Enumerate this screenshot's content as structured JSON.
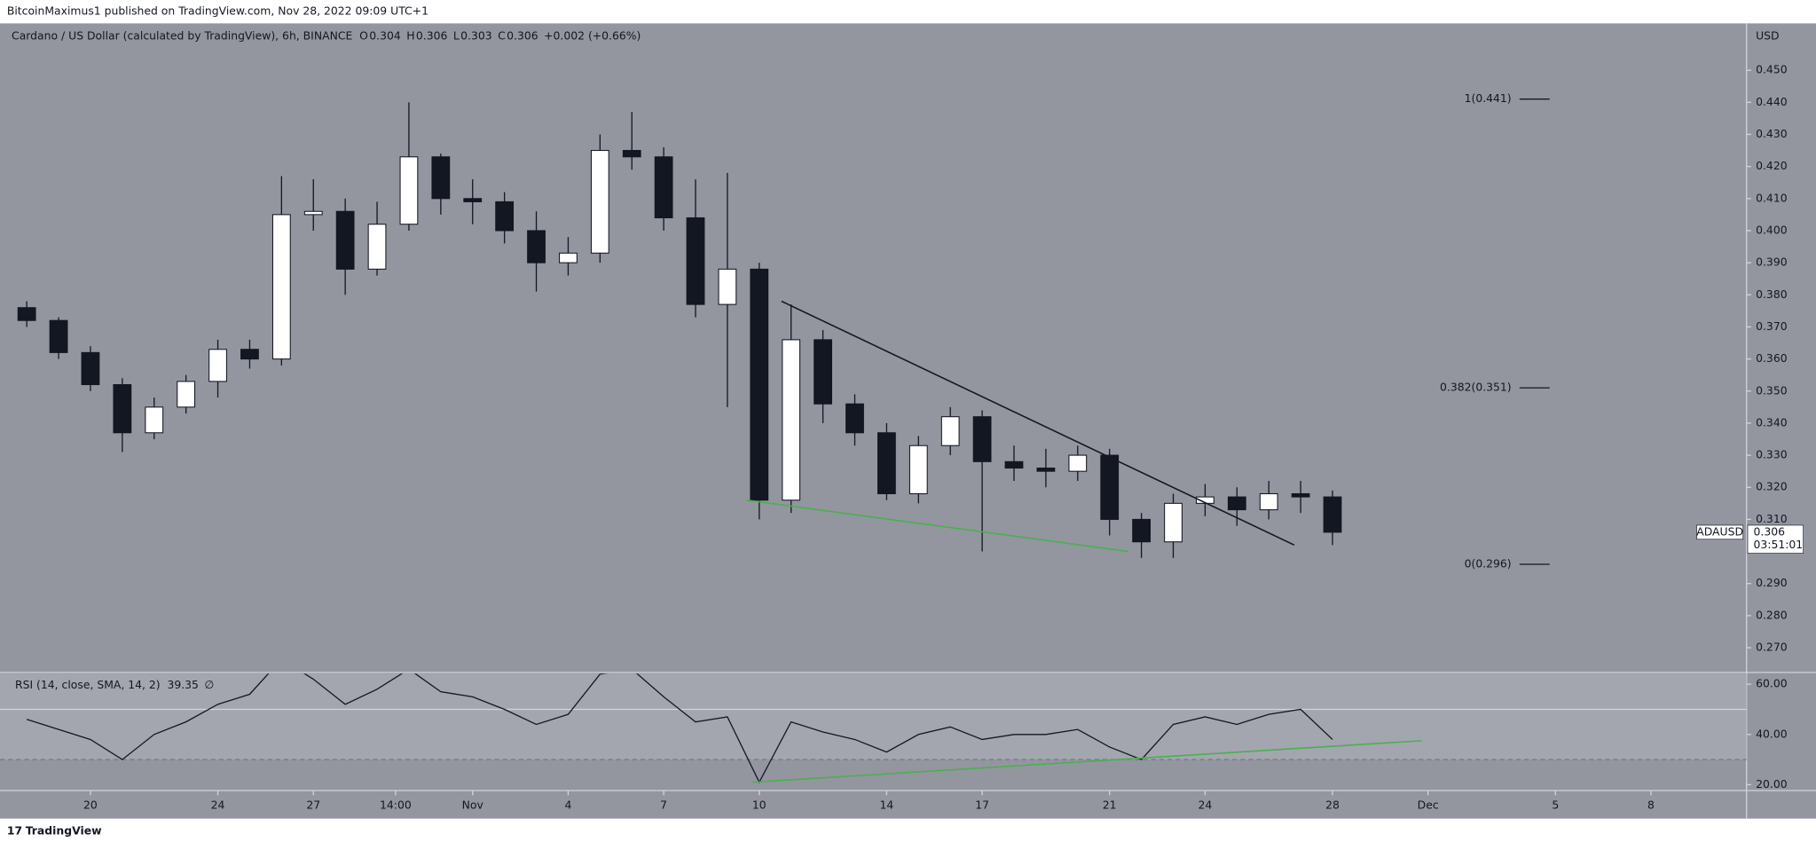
{
  "chart_data": {
    "type": "candlestick",
    "header": "BitcoinMaximus1 published on TradingView.com, Nov 28, 2022 09:09 UTC+1",
    "legend_title": "Cardano / US Dollar (calculated by TradingView), 6h, BINANCE",
    "ohlc_legend": [
      {
        "label": "O",
        "value": 0.304
      },
      {
        "label": "H",
        "value": 0.306
      },
      {
        "label": "L",
        "value": 0.303
      },
      {
        "label": "C",
        "value": 0.306
      }
    ],
    "change": "+0.002 (+0.66%)",
    "y_axis_label": "USD",
    "footer": "TradingView",
    "x": [
      18,
      19,
      20,
      21,
      22,
      23,
      24,
      25,
      26,
      27,
      28,
      29,
      30,
      31,
      32,
      33,
      34,
      35,
      36,
      37,
      38,
      39,
      40,
      41,
      42,
      43,
      44,
      45,
      46,
      47,
      48,
      49,
      50,
      51,
      52,
      53,
      54,
      55,
      56,
      57,
      58,
      59
    ],
    "open": [
      0.376,
      0.372,
      0.362,
      0.352,
      0.337,
      0.345,
      0.353,
      0.363,
      0.36,
      0.405,
      0.406,
      0.388,
      0.402,
      0.423,
      0.41,
      0.409,
      0.4,
      0.39,
      0.393,
      0.425,
      0.423,
      0.404,
      0.377,
      0.388,
      0.316,
      0.366,
      0.346,
      0.337,
      0.318,
      0.333,
      0.342,
      0.328,
      0.326,
      0.325,
      0.33,
      0.31,
      0.303,
      0.315,
      0.317,
      0.313,
      0.318,
      0.317
    ],
    "high": [
      0.378,
      0.373,
      0.364,
      0.354,
      0.348,
      0.355,
      0.366,
      0.366,
      0.417,
      0.416,
      0.41,
      0.409,
      0.44,
      0.424,
      0.416,
      0.412,
      0.406,
      0.398,
      0.43,
      0.437,
      0.426,
      0.416,
      0.418,
      0.39,
      0.377,
      0.369,
      0.349,
      0.34,
      0.336,
      0.345,
      0.344,
      0.333,
      0.332,
      0.333,
      0.332,
      0.312,
      0.318,
      0.321,
      0.32,
      0.322,
      0.322,
      0.319
    ],
    "low": [
      0.37,
      0.36,
      0.35,
      0.331,
      0.335,
      0.343,
      0.348,
      0.357,
      0.358,
      0.4,
      0.38,
      0.386,
      0.4,
      0.405,
      0.402,
      0.396,
      0.381,
      0.386,
      0.39,
      0.419,
      0.4,
      0.373,
      0.345,
      0.31,
      0.312,
      0.34,
      0.333,
      0.316,
      0.315,
      0.33,
      0.3,
      0.322,
      0.32,
      0.322,
      0.305,
      0.298,
      0.298,
      0.311,
      0.308,
      0.31,
      0.312,
      0.302
    ],
    "close": [
      0.372,
      0.362,
      0.352,
      0.337,
      0.345,
      0.353,
      0.363,
      0.36,
      0.405,
      0.406,
      0.388,
      0.402,
      0.423,
      0.41,
      0.409,
      0.4,
      0.39,
      0.393,
      0.425,
      0.423,
      0.404,
      0.377,
      0.388,
      0.316,
      0.366,
      0.346,
      0.337,
      0.318,
      0.333,
      0.342,
      0.328,
      0.326,
      0.325,
      0.33,
      0.31,
      0.303,
      0.315,
      0.317,
      0.313,
      0.318,
      0.317,
      0.306
    ],
    "up_color": "#ffffff",
    "down_color": "#131722",
    "xlim": [
      17.16,
      72
    ],
    "xticks": [
      {
        "value": 20,
        "label": "20"
      },
      {
        "value": 24,
        "label": "24"
      },
      {
        "value": 27,
        "label": "27"
      },
      {
        "value": 29.58,
        "label": "14:00"
      },
      {
        "value": 32,
        "label": "Nov"
      },
      {
        "value": 35,
        "label": "4"
      },
      {
        "value": 38,
        "label": "7"
      },
      {
        "value": 41,
        "label": "10"
      },
      {
        "value": 45,
        "label": "14"
      },
      {
        "value": 48,
        "label": "17"
      },
      {
        "value": 52,
        "label": "21"
      },
      {
        "value": 55,
        "label": "24"
      },
      {
        "value": 59,
        "label": "28"
      },
      {
        "value": 62,
        "label": "Dec"
      },
      {
        "value": 66,
        "label": "5"
      },
      {
        "value": 69,
        "label": "8"
      }
    ],
    "ylim": [
      0.2623,
      0.4646
    ],
    "yticks": [
      {
        "value": 0.45,
        "label": "0.450"
      },
      {
        "value": 0.44,
        "label": "0.440"
      },
      {
        "value": 0.43,
        "label": "0.430"
      },
      {
        "value": 0.42,
        "label": "0.420"
      },
      {
        "value": 0.41,
        "label": "0.410"
      },
      {
        "value": 0.4,
        "label": "0.400"
      },
      {
        "value": 0.39,
        "label": "0.390"
      },
      {
        "value": 0.38,
        "label": "0.380"
      },
      {
        "value": 0.37,
        "label": "0.370"
      },
      {
        "value": 0.36,
        "label": "0.360"
      },
      {
        "value": 0.35,
        "label": "0.350"
      },
      {
        "value": 0.34,
        "label": "0.340"
      },
      {
        "value": 0.33,
        "label": "0.330"
      },
      {
        "value": 0.32,
        "label": "0.320"
      },
      {
        "value": 0.31,
        "label": "0.310"
      },
      {
        "value": 0.29,
        "label": "0.290"
      },
      {
        "value": 0.28,
        "label": "0.280"
      },
      {
        "value": 0.27,
        "label": "0.270"
      }
    ],
    "fib_levels": [
      {
        "value": 0.441,
        "label": "1(0.441)"
      },
      {
        "value": 0.351,
        "label": "0.382(0.351)"
      },
      {
        "value": 0.296,
        "label": "0(0.296)"
      }
    ],
    "symbol_label": "ADAUSD",
    "last_price": 0.306,
    "countdown": "03:51:01",
    "trendlines": [
      {
        "color": "#131722",
        "x": [
          41.7,
          57.8
        ],
        "y": [
          0.378,
          0.302
        ]
      },
      {
        "color": "#4caf50",
        "x": [
          40.6,
          52.6
        ],
        "y": [
          0.316,
          0.3
        ]
      }
    ],
    "rsi": {
      "title": "RSI (14, close, SMA, 14, 2)",
      "value": 39.35,
      "na": "∅",
      "color": "#131722",
      "x": [
        18,
        19,
        20,
        21,
        22,
        23,
        24,
        25,
        26,
        27,
        28,
        29,
        30,
        31,
        32,
        33,
        34,
        35,
        36,
        37,
        38,
        39,
        40,
        41,
        42,
        43,
        44,
        45,
        46,
        47,
        48,
        49,
        50,
        51,
        52,
        53,
        54,
        55,
        56,
        57,
        58,
        59
      ],
      "values": [
        46,
        42,
        38,
        30,
        40,
        45,
        52,
        56,
        70,
        62,
        52,
        58,
        66,
        57,
        55,
        50,
        44,
        48,
        64,
        66,
        55,
        45,
        47,
        21,
        45,
        41,
        38,
        33,
        40,
        43,
        38,
        40,
        40,
        42,
        35,
        30,
        44,
        47,
        44,
        48,
        50,
        38
      ],
      "ylim": [
        15.8,
        64.7
      ],
      "yticks": [
        {
          "value": 60,
          "label": "60.00"
        },
        {
          "value": 40,
          "label": "40.00"
        },
        {
          "value": 20,
          "label": "20.00"
        }
      ],
      "levels": [
        50,
        30
      ],
      "trendline": {
        "color": "#4caf50",
        "x": [
          40.8,
          61.8
        ],
        "y": [
          21,
          37.5
        ]
      }
    }
  }
}
